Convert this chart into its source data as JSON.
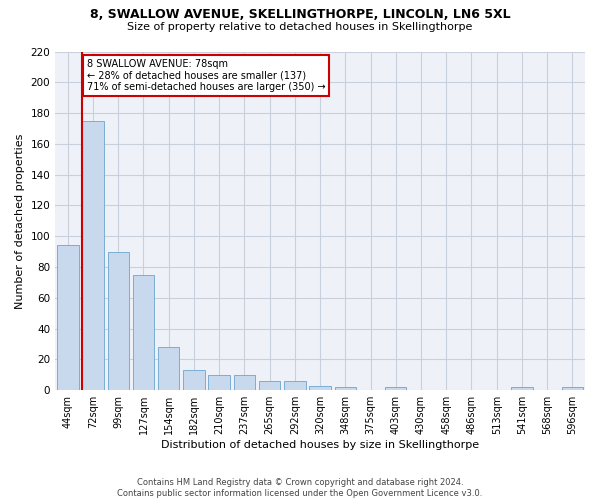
{
  "title1": "8, SWALLOW AVENUE, SKELLINGTHORPE, LINCOLN, LN6 5XL",
  "title2": "Size of property relative to detached houses in Skellingthorpe",
  "xlabel": "Distribution of detached houses by size in Skellingthorpe",
  "ylabel": "Number of detached properties",
  "categories": [
    "44sqm",
    "72sqm",
    "99sqm",
    "127sqm",
    "154sqm",
    "182sqm",
    "210sqm",
    "237sqm",
    "265sqm",
    "292sqm",
    "320sqm",
    "348sqm",
    "375sqm",
    "403sqm",
    "430sqm",
    "458sqm",
    "486sqm",
    "513sqm",
    "541sqm",
    "568sqm",
    "596sqm"
  ],
  "values": [
    94,
    175,
    90,
    75,
    28,
    13,
    10,
    10,
    6,
    6,
    3,
    2,
    0,
    2,
    0,
    0,
    0,
    0,
    2,
    0,
    2
  ],
  "bar_color": "#c9d9ed",
  "bar_edge_color": "#7aadd4",
  "annotation_text": "8 SWALLOW AVENUE: 78sqm\n← 28% of detached houses are smaller (137)\n71% of semi-detached houses are larger (350) →",
  "annotation_box_color": "#ffffff",
  "annotation_box_edge": "#cc0000",
  "vline_color": "#cc0000",
  "ylim": [
    0,
    220
  ],
  "yticks": [
    0,
    20,
    40,
    60,
    80,
    100,
    120,
    140,
    160,
    180,
    200,
    220
  ],
  "bg_color": "#eef2f8",
  "grid_color": "#c8d0dc",
  "footer": "Contains HM Land Registry data © Crown copyright and database right 2024.\nContains public sector information licensed under the Open Government Licence v3.0."
}
